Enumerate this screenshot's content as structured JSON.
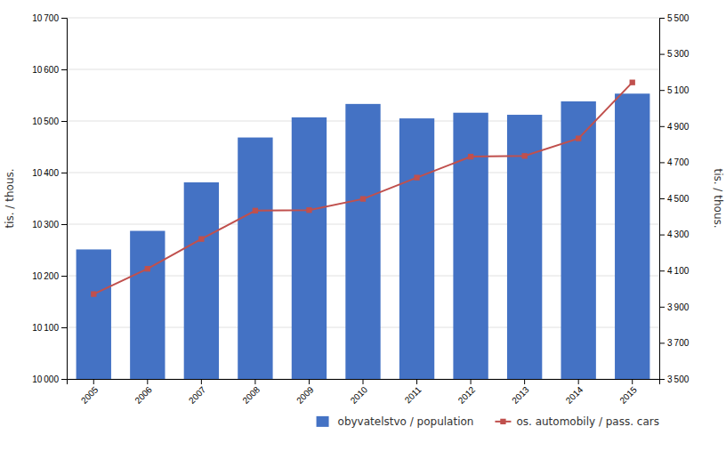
{
  "chart_data": {
    "type": "bar",
    "categories": [
      "2005",
      "2006",
      "2007",
      "2008",
      "2009",
      "2010",
      "2011",
      "2012",
      "2013",
      "2014",
      "2015"
    ],
    "series": [
      {
        "name": "obyvatelstvo / population",
        "type": "bar",
        "color": "#4472C4",
        "values": [
          10251,
          10287,
          10381,
          10468,
          10507,
          10533,
          10505,
          10516,
          10512,
          10538,
          10553
        ]
      },
      {
        "name": "os. automobily / pass. cars",
        "type": "line",
        "axis": "y2",
        "color": "#C0504D",
        "marker": "square",
        "values": [
          3970,
          4110,
          4275,
          4432,
          4435,
          4497,
          4615,
          4731,
          4735,
          4832,
          5142
        ]
      }
    ],
    "y_label": "tis. / thous.",
    "y2_label": "tis. / thous.",
    "ylim": [
      10000,
      10700
    ],
    "yticks": [
      {
        "value": 10000,
        "label": "10 000"
      },
      {
        "value": 10100,
        "label": "10 100"
      },
      {
        "value": 10200,
        "label": "10 200"
      },
      {
        "value": 10300,
        "label": "10 300"
      },
      {
        "value": 10400,
        "label": "10 400"
      },
      {
        "value": 10500,
        "label": "10 500"
      },
      {
        "value": 10600,
        "label": "10 600"
      },
      {
        "value": 10700,
        "label": "10 700"
      }
    ],
    "y2lim": [
      3500,
      5500
    ],
    "y2ticks": [
      {
        "value": 3500,
        "label": "3 500"
      },
      {
        "value": 3700,
        "label": "3 700"
      },
      {
        "value": 3900,
        "label": "3 900"
      },
      {
        "value": 4100,
        "label": "4 100"
      },
      {
        "value": 4300,
        "label": "4 300"
      },
      {
        "value": 4500,
        "label": "4 500"
      },
      {
        "value": 4700,
        "label": "4 700"
      },
      {
        "value": 4900,
        "label": "4 900"
      },
      {
        "value": 5100,
        "label": "5 100"
      },
      {
        "value": 5300,
        "label": "5 300"
      },
      {
        "value": 5500,
        "label": "5 500"
      }
    ],
    "grid": true,
    "legend": "lower right"
  }
}
